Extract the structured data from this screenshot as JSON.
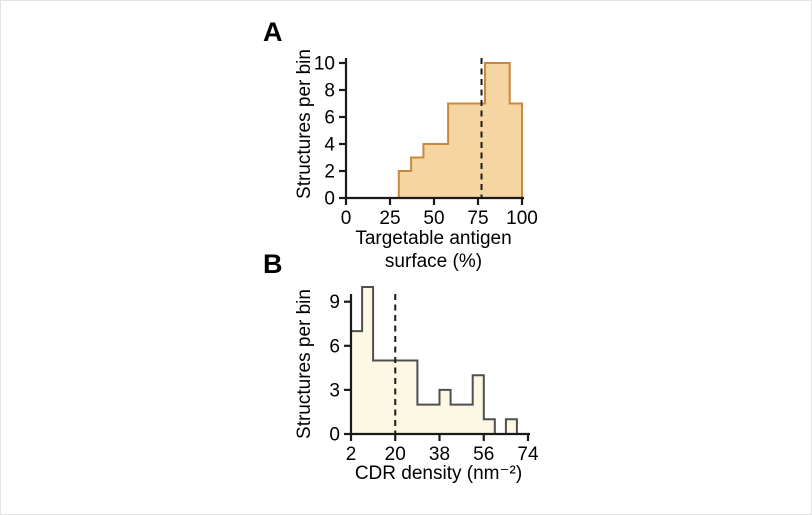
{
  "figure": {
    "background": "#ffffff",
    "axis_color": "#1a1a1a",
    "dashed_line_color": "#1a1a1a"
  },
  "chart_data": [
    {
      "type": "bar",
      "chart_kind": "histogram",
      "panel_label": "A",
      "ylabel": "Structures per bin",
      "xlabel": "Targetable antigen surface (%)",
      "xlabel_line1": "Targetable antigen",
      "xlabel_line2": "surface (%)",
      "xlim": [
        0,
        100
      ],
      "ylim": [
        0,
        10
      ],
      "xticks": [
        0,
        25,
        50,
        75,
        100
      ],
      "yticks": [
        0,
        2,
        4,
        6,
        8,
        10
      ],
      "grid": false,
      "legend": false,
      "dashed_line_x": 77,
      "bar_fill": "#f5d5a2",
      "bar_stroke": "#c9893d",
      "bins": [
        {
          "x0": 30,
          "x1": 37,
          "count": 2
        },
        {
          "x0": 37,
          "x1": 44,
          "count": 3
        },
        {
          "x0": 44,
          "x1": 51,
          "count": 4
        },
        {
          "x0": 51,
          "x1": 58,
          "count": 4
        },
        {
          "x0": 58,
          "x1": 65,
          "count": 7
        },
        {
          "x0": 65,
          "x1": 72,
          "count": 7
        },
        {
          "x0": 72,
          "x1": 79,
          "count": 7
        },
        {
          "x0": 79,
          "x1": 86,
          "count": 10
        },
        {
          "x0": 86,
          "x1": 93,
          "count": 10
        },
        {
          "x0": 93,
          "x1": 100,
          "count": 7
        }
      ]
    },
    {
      "type": "bar",
      "chart_kind": "histogram",
      "panel_label": "B",
      "ylabel": "Structures per bin",
      "xlabel": "CDR density (nm⁻²)",
      "xlabel_line1": "CDR density (nm⁻²)",
      "xlim": [
        2,
        74
      ],
      "ylim": [
        0,
        10
      ],
      "xticks": [
        2,
        20,
        38,
        56,
        74
      ],
      "yticks": [
        0,
        3,
        6,
        9
      ],
      "grid": false,
      "legend": false,
      "dashed_line_x": 20,
      "bar_fill": "#fcf8e3",
      "bar_stroke": "#4f4f4f",
      "bins": [
        {
          "x0": 2,
          "x1": 6.5,
          "count": 7
        },
        {
          "x0": 6.5,
          "x1": 11,
          "count": 10
        },
        {
          "x0": 11,
          "x1": 15.5,
          "count": 5
        },
        {
          "x0": 15.5,
          "x1": 20,
          "count": 5
        },
        {
          "x0": 20,
          "x1": 24.5,
          "count": 5
        },
        {
          "x0": 24.5,
          "x1": 29,
          "count": 5
        },
        {
          "x0": 29,
          "x1": 33.5,
          "count": 2
        },
        {
          "x0": 33.5,
          "x1": 38,
          "count": 2
        },
        {
          "x0": 38,
          "x1": 42.5,
          "count": 3
        },
        {
          "x0": 42.5,
          "x1": 47,
          "count": 2
        },
        {
          "x0": 47,
          "x1": 51.5,
          "count": 2
        },
        {
          "x0": 51.5,
          "x1": 56,
          "count": 4
        },
        {
          "x0": 56,
          "x1": 60.5,
          "count": 1
        },
        {
          "x0": 60.5,
          "x1": 65,
          "count": 0
        },
        {
          "x0": 65,
          "x1": 69.5,
          "count": 1
        },
        {
          "x0": 69.5,
          "x1": 74,
          "count": 0
        }
      ]
    }
  ]
}
